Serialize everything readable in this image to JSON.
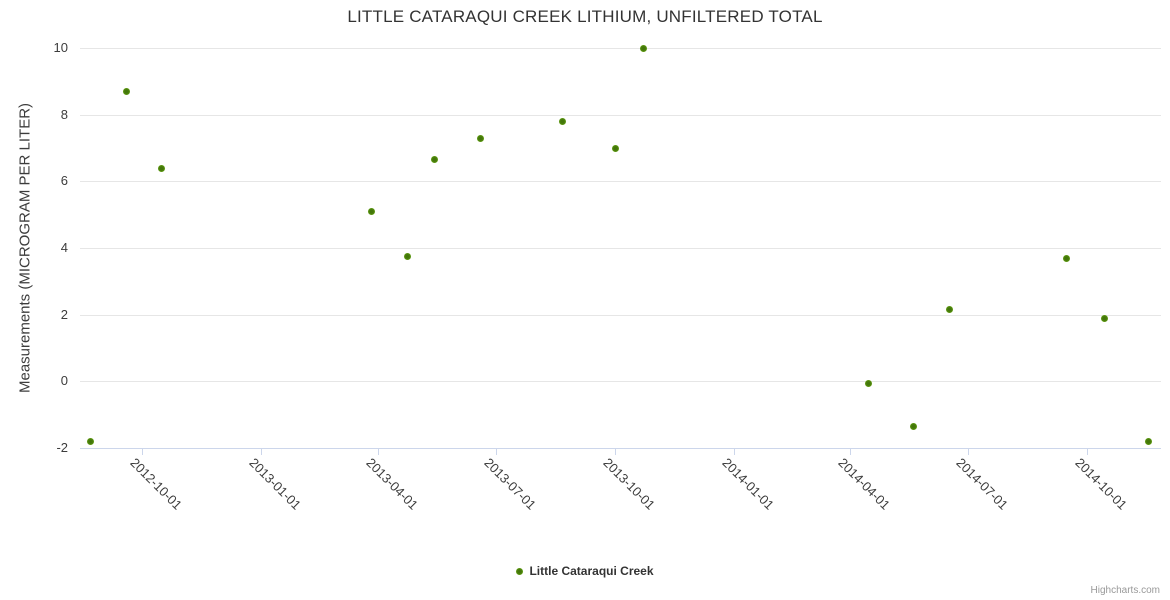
{
  "title": "LITTLE CATARAQUI CREEK LITHIUM, UNFILTERED TOTAL",
  "legend": {
    "series_label": "Little Cataraqui Creek"
  },
  "credit": {
    "label": "Highcharts.com"
  },
  "colors": {
    "marker_green": "#5d9b0b",
    "marker_center": "#46790a",
    "marker_edge": "#79bb24",
    "gridline": "#e6e6e6",
    "axis_line": "#ccd6eb",
    "title_text": "#333333",
    "axis_label_text": "#3c3c3c",
    "credit_text": "#999999"
  },
  "chart_data": {
    "type": "scatter",
    "title": "LITTLE CATARAQUI CREEK LITHIUM, UNFILTERED TOTAL",
    "xlabel": "",
    "ylabel": "Measurements (MICROGRAM PER LITER)",
    "ylim": [
      -2,
      10
    ],
    "xlim": [
      "2012-08-14",
      "2014-11-27"
    ],
    "y_ticks": [
      -2,
      0,
      2,
      4,
      6,
      8,
      10
    ],
    "x_ticks": [
      "2012-10-01",
      "2013-01-01",
      "2013-04-01",
      "2013-07-01",
      "2013-10-01",
      "2014-01-01",
      "2014-04-01",
      "2014-07-01",
      "2014-10-01"
    ],
    "grid": true,
    "legend_position": "bottom-center",
    "series": [
      {
        "name": "Little Cataraqui Creek",
        "color": "#5d9b0b",
        "points": [
          {
            "x": "2012-08-22",
            "y": -1.8
          },
          {
            "x": "2012-09-19",
            "y": 8.7
          },
          {
            "x": "2012-10-16",
            "y": 6.4
          },
          {
            "x": "2013-03-27",
            "y": 5.1
          },
          {
            "x": "2013-04-24",
            "y": 3.75
          },
          {
            "x": "2013-05-15",
            "y": 6.65
          },
          {
            "x": "2013-06-19",
            "y": 7.3
          },
          {
            "x": "2013-08-22",
            "y": 7.8
          },
          {
            "x": "2013-10-02",
            "y": 7.0
          },
          {
            "x": "2013-10-23",
            "y": 10
          },
          {
            "x": "2014-04-15",
            "y": -0.05
          },
          {
            "x": "2014-05-20",
            "y": -1.35
          },
          {
            "x": "2014-06-17",
            "y": 2.15
          },
          {
            "x": "2014-09-15",
            "y": 3.7
          },
          {
            "x": "2014-10-14",
            "y": 1.9
          },
          {
            "x": "2014-11-17",
            "y": -1.8
          }
        ]
      }
    ]
  }
}
